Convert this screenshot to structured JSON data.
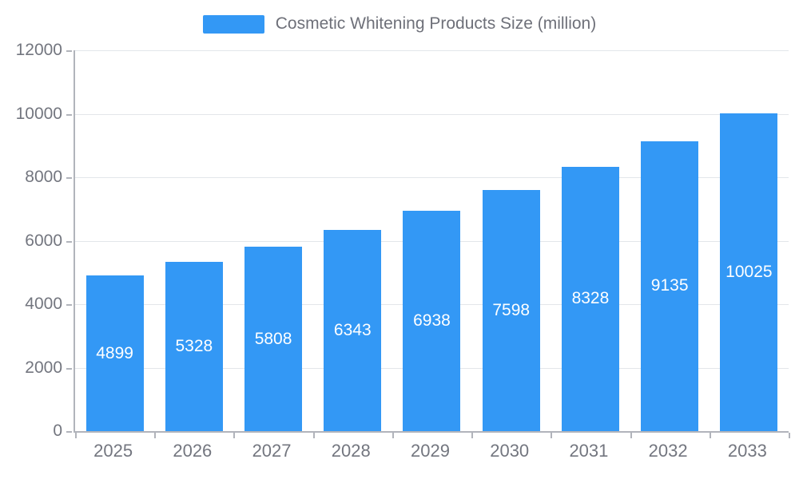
{
  "chart_data": {
    "type": "bar",
    "title": "Cosmetic Whitening Products Size (million)",
    "categories": [
      "2025",
      "2026",
      "2027",
      "2028",
      "2029",
      "2030",
      "2031",
      "2032",
      "2033"
    ],
    "values": [
      4899,
      5328,
      5808,
      6343,
      6938,
      7598,
      8328,
      9135,
      10025
    ],
    "xlabel": "",
    "ylabel": "",
    "ylim": [
      0,
      12000
    ],
    "yticks": [
      0,
      2000,
      4000,
      6000,
      8000,
      10000,
      12000
    ],
    "grid": "horizontal",
    "legend_position": "top-center",
    "bar_color": "#3398f5",
    "grid_color": "#e3e6ea",
    "axis_color": "#b1b4bb",
    "tick_text_color": "#73767f",
    "bar_label_color": "#ffffff"
  }
}
